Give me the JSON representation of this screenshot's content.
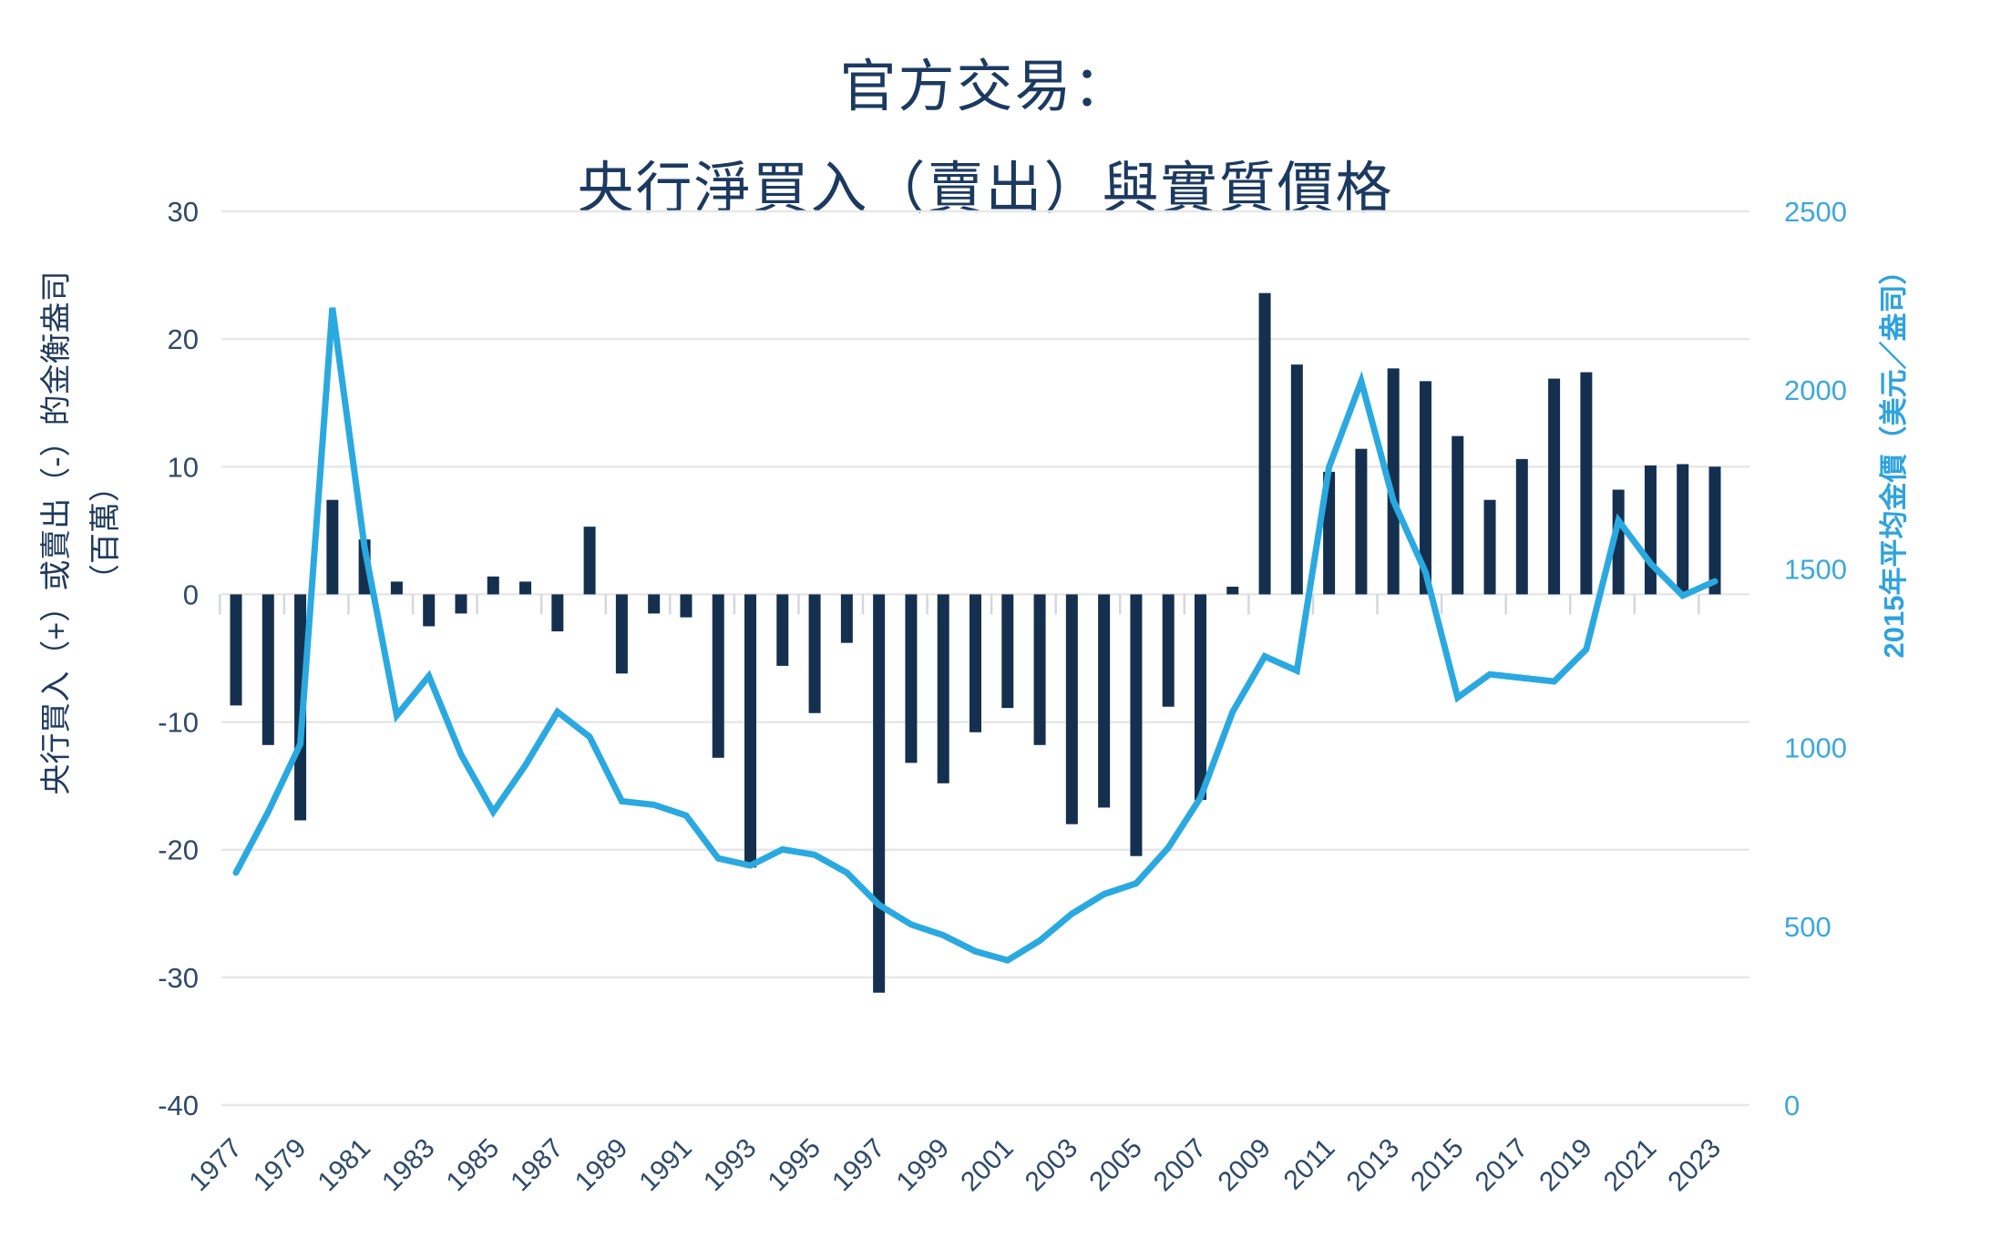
{
  "page": {
    "background": "#ffffff"
  },
  "title": {
    "line1": "官方交易：",
    "line2": "央行淨買入（賣出）與實質價格"
  },
  "left_axis": {
    "title_main": "央行買入（+）或賣出（-）的金衡盎司",
    "title_sub": "（百萬）",
    "tick_labels": [
      "30",
      "20",
      "10",
      "0",
      "-10",
      "-20",
      "-30",
      "-40"
    ],
    "tick_values": [
      30,
      20,
      10,
      0,
      -10,
      -20,
      -30,
      -40
    ]
  },
  "right_axis": {
    "title": "2015年平均金價（美元／盎司）",
    "tick_labels": [
      "2500",
      "2000",
      "1500",
      "1000",
      "500",
      "0"
    ],
    "tick_values": [
      2500,
      2000,
      1500,
      1000,
      500,
      0
    ]
  },
  "x_axis": {
    "visible_labels": [
      "1977",
      "1979",
      "1981",
      "1983",
      "1985",
      "1987",
      "1989",
      "1991",
      "1993",
      "1995",
      "1997",
      "1999",
      "2001",
      "2003",
      "2005",
      "2007",
      "2009",
      "2011",
      "2013",
      "2015",
      "2017",
      "2019",
      "2021",
      "2023"
    ]
  },
  "colors": {
    "bar": "#152F4F",
    "line": "#2AA9E0",
    "grid": "#E7E7E7",
    "axis_tick_mark": "#D4D8DB",
    "dark_text": "#2E4A68",
    "blue_text": "#3BA7DF"
  },
  "chart_data": {
    "type": "bar",
    "subtype": "bar+line dual axis",
    "title": "官方交易：央行淨買入（賣出）與實質價格",
    "x": [
      1977,
      1978,
      1979,
      1980,
      1981,
      1982,
      1983,
      1984,
      1985,
      1986,
      1987,
      1988,
      1989,
      1990,
      1991,
      1992,
      1993,
      1994,
      1995,
      1996,
      1997,
      1998,
      1999,
      2000,
      2001,
      2002,
      2003,
      2004,
      2005,
      2006,
      2007,
      2008,
      2009,
      2010,
      2011,
      2012,
      2013,
      2014,
      2015,
      2016,
      2017,
      2018,
      2019,
      2020,
      2021,
      2022,
      2023
    ],
    "left_ylabel": "央行買入（+）或賣出（-）的金衡盎司（百萬）",
    "right_ylabel": "2015年平均金價（美元／盎司）",
    "left_ylim": [
      -40,
      30
    ],
    "right_ylim": [
      0,
      2500
    ],
    "grid": "horizontal only",
    "legend": "none",
    "series": [
      {
        "name": "央行淨買入（賣出）",
        "type": "bar",
        "axis": "left",
        "color": "#152F4F",
        "values": [
          -8.7,
          -11.8,
          -17.7,
          7.4,
          4.3,
          1.0,
          -2.5,
          -1.5,
          1.4,
          1.0,
          -2.9,
          5.3,
          -6.2,
          -1.5,
          -1.8,
          -12.8,
          -21.4,
          -5.6,
          -9.3,
          -3.8,
          -31.2,
          -13.2,
          -14.8,
          -10.8,
          -8.9,
          -11.8,
          -18.0,
          -16.7,
          -20.5,
          -8.8,
          -16.1,
          0.6,
          23.6,
          18.0,
          9.6,
          11.4,
          17.7,
          16.7,
          12.4,
          7.4,
          10.6,
          16.9,
          17.4,
          8.2,
          10.1,
          10.2,
          10.0
        ]
      },
      {
        "name": "2015年平均金價（美元／盎司）",
        "type": "line",
        "axis": "right",
        "color": "#2AA9E0",
        "values": [
          650,
          820,
          1010,
          2230,
          1560,
          1090,
          1200,
          980,
          820,
          950,
          1100,
          1030,
          850,
          840,
          810,
          690,
          670,
          715,
          700,
          650,
          560,
          505,
          475,
          430,
          405,
          460,
          535,
          590,
          620,
          720,
          860,
          1100,
          1255,
          1215,
          1785,
          2025,
          1690,
          1490,
          1140,
          1205,
          1195,
          1185,
          1275,
          1635,
          1515,
          1425,
          1465
        ]
      }
    ]
  }
}
